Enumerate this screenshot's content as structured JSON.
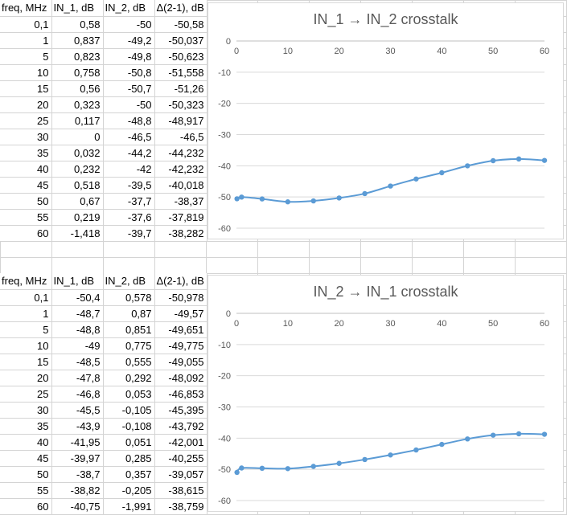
{
  "tables": [
    {
      "headers": [
        "freq, MHz",
        "IN_1, dB",
        "IN_2, dB",
        "Δ(2-1), dB"
      ],
      "rows": [
        [
          "0,1",
          "0,58",
          "-50",
          "-50,58"
        ],
        [
          "1",
          "0,837",
          "-49,2",
          "-50,037"
        ],
        [
          "5",
          "0,823",
          "-49,8",
          "-50,623"
        ],
        [
          "10",
          "0,758",
          "-50,8",
          "-51,558"
        ],
        [
          "15",
          "0,56",
          "-50,7",
          "-51,26"
        ],
        [
          "20",
          "0,323",
          "-50",
          "-50,323"
        ],
        [
          "25",
          "0,117",
          "-48,8",
          "-48,917"
        ],
        [
          "30",
          "0",
          "-46,5",
          "-46,5"
        ],
        [
          "35",
          "0,032",
          "-44,2",
          "-44,232"
        ],
        [
          "40",
          "0,232",
          "-42",
          "-42,232"
        ],
        [
          "45",
          "0,518",
          "-39,5",
          "-40,018"
        ],
        [
          "50",
          "0,67",
          "-37,7",
          "-38,37"
        ],
        [
          "55",
          "0,219",
          "-37,6",
          "-37,819"
        ],
        [
          "60",
          "-1,418",
          "-39,7",
          "-38,282"
        ]
      ]
    },
    {
      "headers": [
        "freq, MHz",
        "IN_1, dB",
        "IN_2, dB",
        "Δ(2-1), dB"
      ],
      "rows": [
        [
          "0,1",
          "-50,4",
          "0,578",
          "-50,978"
        ],
        [
          "1",
          "-48,7",
          "0,87",
          "-49,57"
        ],
        [
          "5",
          "-48,8",
          "0,851",
          "-49,651"
        ],
        [
          "10",
          "-49",
          "0,775",
          "-49,775"
        ],
        [
          "15",
          "-48,5",
          "0,555",
          "-49,055"
        ],
        [
          "20",
          "-47,8",
          "0,292",
          "-48,092"
        ],
        [
          "25",
          "-46,8",
          "0,053",
          "-46,853"
        ],
        [
          "30",
          "-45,5",
          "-0,105",
          "-45,395"
        ],
        [
          "35",
          "-43,9",
          "-0,108",
          "-43,792"
        ],
        [
          "40",
          "-41,95",
          "0,051",
          "-42,001"
        ],
        [
          "45",
          "-39,97",
          "0,285",
          "-40,255"
        ],
        [
          "50",
          "-38,7",
          "0,357",
          "-39,057"
        ],
        [
          "55",
          "-38,82",
          "-0,205",
          "-38,615"
        ],
        [
          "60",
          "-40,75",
          "-1,991",
          "-38,759"
        ]
      ]
    }
  ],
  "chart_data": [
    {
      "type": "line",
      "title": "IN_1 → IN_2 crosstalk",
      "x": [
        0.1,
        1,
        5,
        10,
        15,
        20,
        25,
        30,
        35,
        40,
        45,
        50,
        55,
        60
      ],
      "series": [
        {
          "values": [
            -50.58,
            -50.037,
            -50.623,
            -51.558,
            -51.26,
            -50.323,
            -48.917,
            -46.5,
            -44.232,
            -42.232,
            -40.018,
            -38.37,
            -37.819,
            -38.282
          ]
        }
      ],
      "x_ticks": [
        "0",
        "10",
        "20",
        "30",
        "40",
        "50",
        "60"
      ],
      "y_ticks": [
        "0",
        "-10",
        "-20",
        "-30",
        "-40",
        "-50",
        "-60"
      ],
      "xlim": [
        0,
        60
      ],
      "ylim": [
        -60,
        0
      ],
      "grid": true,
      "x_axis_position": "top",
      "color": "#5b9bd5"
    },
    {
      "type": "line",
      "title": "IN_2 → IN_1 crosstalk",
      "x": [
        0.1,
        1,
        5,
        10,
        15,
        20,
        25,
        30,
        35,
        40,
        45,
        50,
        55,
        60
      ],
      "series": [
        {
          "values": [
            -50.978,
            -49.57,
            -49.651,
            -49.775,
            -49.055,
            -48.092,
            -46.853,
            -45.395,
            -43.792,
            -42.001,
            -40.255,
            -39.057,
            -38.615,
            -38.759
          ]
        }
      ],
      "x_ticks": [
        "0",
        "10",
        "20",
        "30",
        "40",
        "50",
        "60"
      ],
      "y_ticks": [
        "0",
        "-10",
        "-20",
        "-30",
        "-40",
        "-50",
        "-60"
      ],
      "xlim": [
        0,
        60
      ],
      "ylim": [
        -60,
        0
      ],
      "grid": true,
      "x_axis_position": "top",
      "color": "#5b9bd5"
    }
  ]
}
